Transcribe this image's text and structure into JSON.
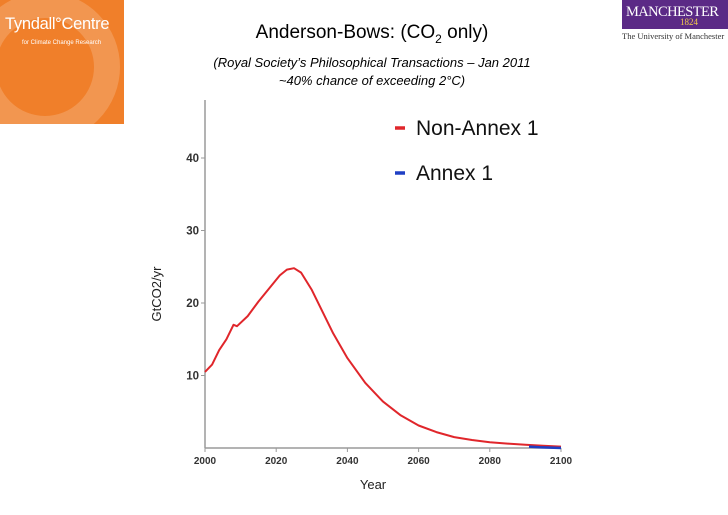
{
  "logos": {
    "tyndall_name": "Tyndall°Centre",
    "tyndall_sub": "for Climate Change Research",
    "manchester_name": "MANCHESTER",
    "manchester_year": "1824",
    "manchester_uni": "The University of Manchester"
  },
  "title": {
    "main": "Anderson-Bows: (CO",
    "sub": "2",
    "end": " only)"
  },
  "subtitle_line1": "(Royal Society’s Philosophical Transactions – Jan 2011",
  "subtitle_line2": "~40% chance of exceeding 2°C)",
  "colors": {
    "non_annex": "#e0262b",
    "annex": "#1f3fc4",
    "tyndall": "#f07f2a",
    "manchester": "#5b2a86"
  },
  "chart_data": {
    "type": "line",
    "xlabel": "Year",
    "ylabel": "GtCO2/yr",
    "xlim": [
      2000,
      2100
    ],
    "ylim": [
      0,
      48
    ],
    "xticks": [
      2000,
      2020,
      2040,
      2060,
      2080,
      2100
    ],
    "yticks": [
      10,
      20,
      30,
      40
    ],
    "legend_position": "top-right",
    "series": [
      {
        "name": "Non-Annex 1",
        "x": [
          2000,
          2002,
          2004,
          2006,
          2008,
          2009,
          2012,
          2015,
          2018,
          2021,
          2023,
          2025,
          2027,
          2030,
          2033,
          2036,
          2040,
          2045,
          2050,
          2055,
          2060,
          2065,
          2070,
          2075,
          2080,
          2085,
          2090,
          2095,
          2100
        ],
        "y": [
          10.5,
          11.5,
          13.5,
          15.0,
          17.0,
          16.8,
          18.2,
          20.2,
          22.0,
          23.8,
          24.6,
          24.8,
          24.2,
          21.8,
          18.8,
          15.8,
          12.4,
          9.0,
          6.4,
          4.5,
          3.1,
          2.2,
          1.5,
          1.1,
          0.8,
          0.6,
          0.45,
          0.3,
          0.2
        ]
      },
      {
        "name": "Annex 1",
        "x": [
          2091,
          2094,
          2097,
          2100
        ],
        "y": [
          0.2,
          0.1,
          0.05,
          0.0
        ]
      }
    ]
  }
}
